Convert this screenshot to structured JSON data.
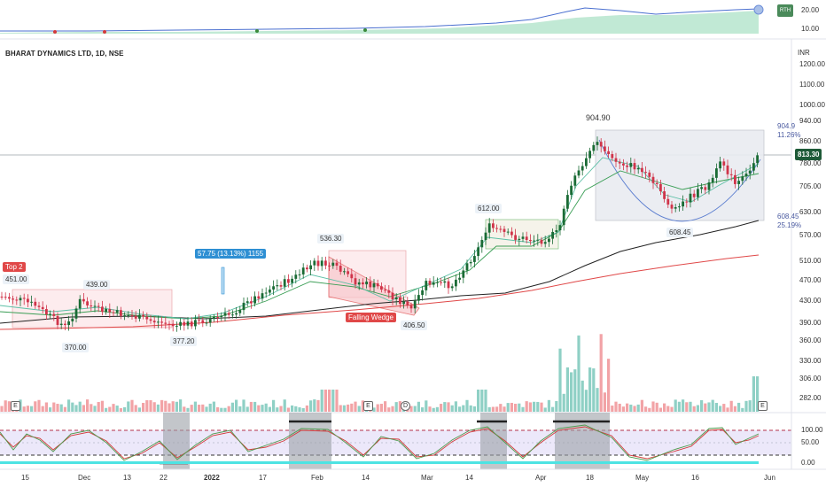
{
  "title": "BHARAT DYNAMICS LTD, 1D, NSE",
  "currency": "INR",
  "current_price": "813.30",
  "indicator_badge": "RTH",
  "price_axis": [
    "1200.00",
    "1100.00",
    "1000.00",
    "940.00",
    "860.00",
    "780.00",
    "705.00",
    "630.00",
    "570.00",
    "510.00",
    "470.00",
    "430.00",
    "390.00",
    "360.00",
    "330.00",
    "306.00",
    "282.00"
  ],
  "top_axis": [
    "20.00",
    "10.00"
  ],
  "rsi_axis": [
    "100.00",
    "50.00",
    "0.00"
  ],
  "time_axis": [
    "15",
    "Dec",
    "13",
    "22",
    "2022",
    "17",
    "Feb",
    "14",
    "Mar",
    "14",
    "Apr",
    "18",
    "May",
    "16",
    "Jun"
  ],
  "annotations": {
    "high_label": "904.90",
    "low_label": "608.45",
    "range_top": "904.9",
    "range_top_pct": "11.26%",
    "range_bottom": "608.45",
    "range_bottom_pct": "25.19%",
    "peak_1": "536.30",
    "peak_2": "612.00",
    "low_1": "406.50",
    "low_2": "377.20",
    "low_3": "370.00",
    "left_high": "451.00",
    "left_high_2": "439.00",
    "measure": "57.75 (13.13%) 1155",
    "top2": "Top 2",
    "falling_wedge": "Falling Wedge"
  },
  "events": [
    "E",
    "E",
    "D",
    "E"
  ],
  "colors": {
    "up": "#1a6b35",
    "down": "#d0344a",
    "ma_black": "#222222",
    "ma_red": "#e04848",
    "ma_green": "#3a9e55",
    "ma_teal": "#5bbfa5",
    "vol_up": "#8fd0c5",
    "vol_down": "#f2a3a6",
    "rsi_line": "#4d9a4d",
    "rsi_signal": "#d33a3a",
    "accent_blue": "#2e8fd3"
  }
}
